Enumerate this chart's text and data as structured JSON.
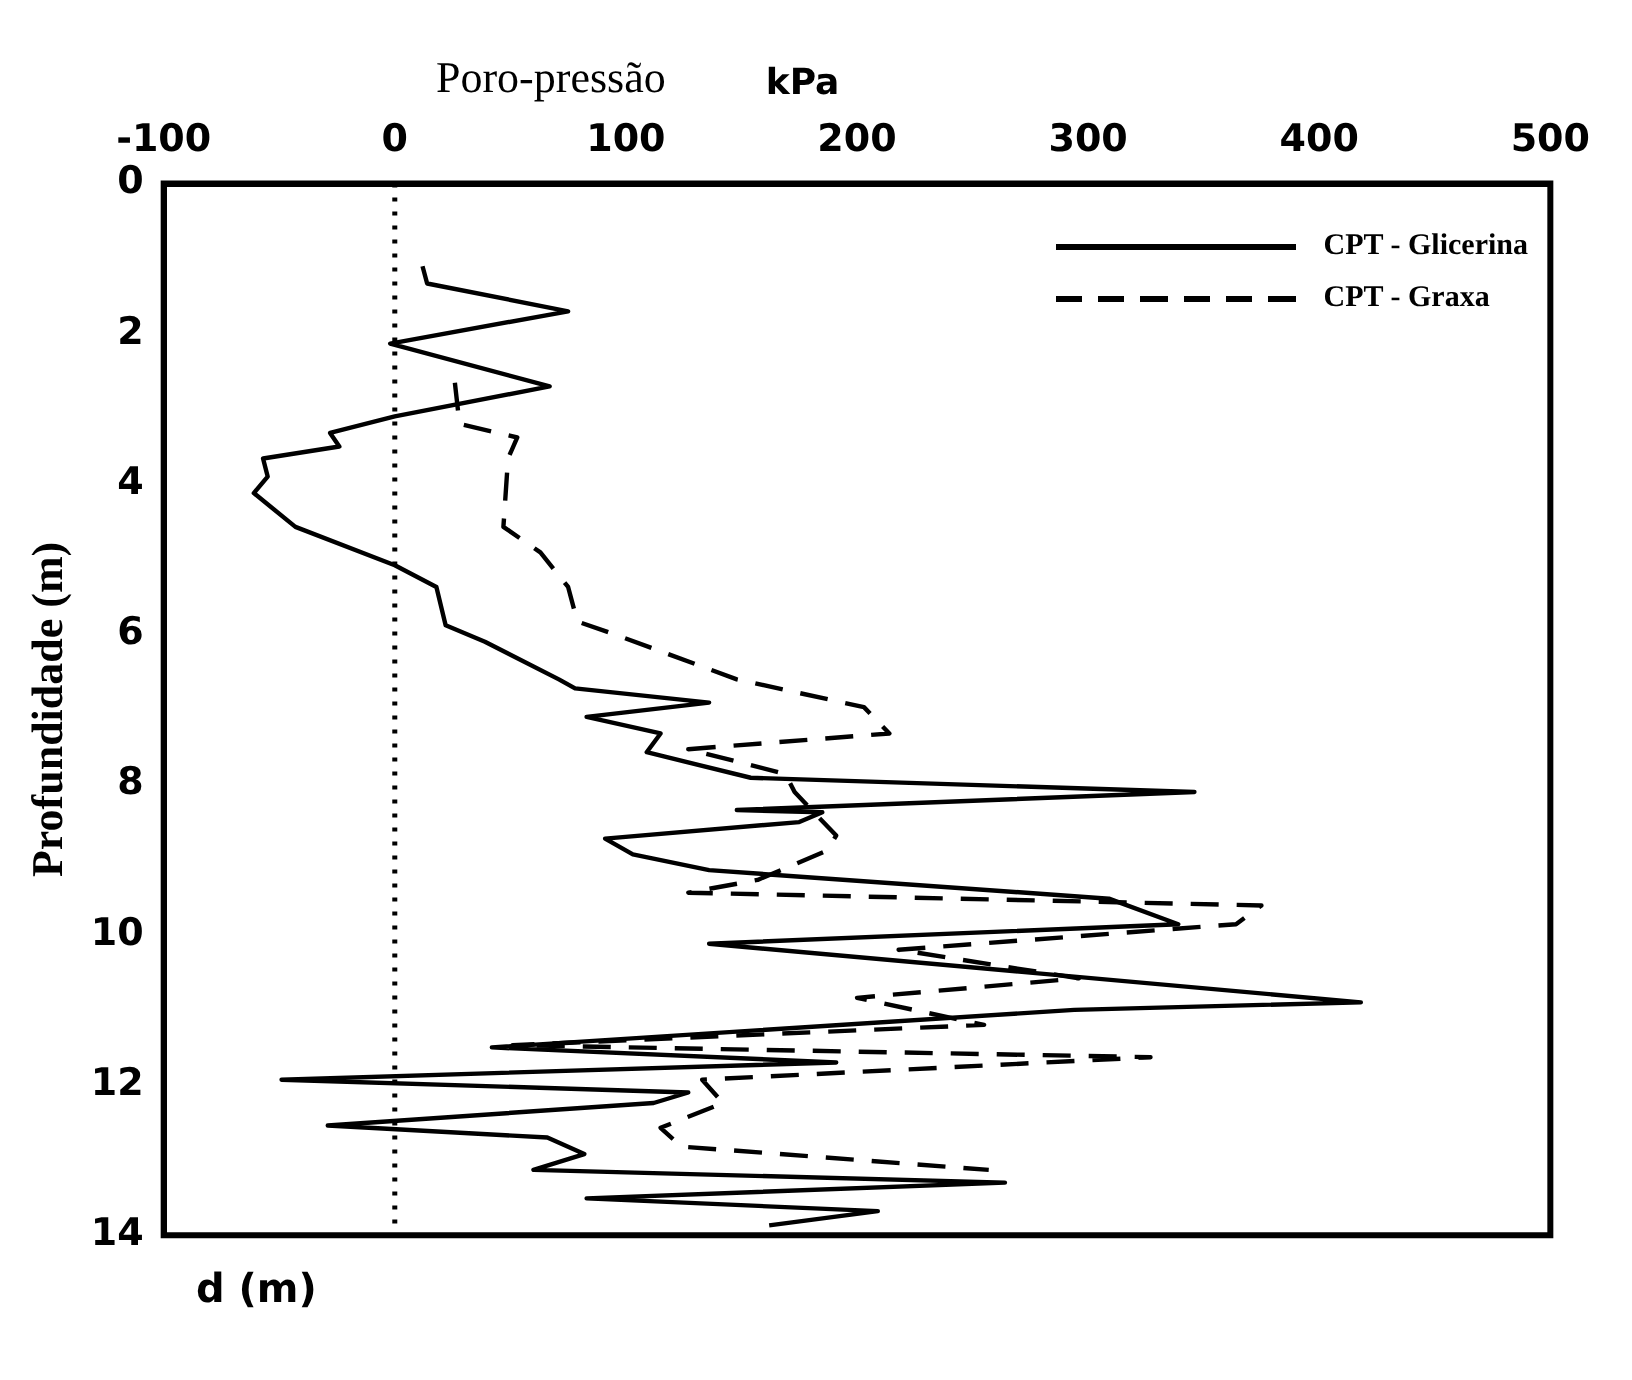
{
  "chart_data": {
    "type": "line",
    "title": "Poro-pressão",
    "xlabel": "kPa",
    "ylabel": "Profundidade (m)",
    "annotations": [
      "d (m)"
    ],
    "xlim": [
      -100,
      500
    ],
    "xticks": [
      -100,
      0,
      100,
      200,
      300,
      400,
      500
    ],
    "ylim": [
      14,
      0
    ],
    "yticks": [
      0,
      2,
      4,
      6,
      8,
      10,
      12,
      14
    ],
    "grid": false,
    "legend": "top right",
    "marker": "none",
    "ref_lines": [
      {
        "axis": "x",
        "value": 0,
        "line_style": "dotted",
        "color": "#000000"
      }
    ],
    "series": [
      {
        "name": "CPT - Glicerina",
        "color": "#000000",
        "line_style": "solid",
        "x": [
          12,
          14,
          75,
          -2,
          67,
          0,
          -28,
          -24,
          -57,
          -55,
          -61,
          -43,
          0,
          18,
          22,
          39,
          71,
          78,
          136,
          83,
          115,
          109,
          154,
          346,
          148,
          185,
          175,
          91,
          103,
          136,
          309,
          339,
          136,
          418,
          294,
          42,
          191,
          -49,
          127,
          112,
          -29,
          66,
          82,
          60,
          264,
          83,
          209,
          162
        ],
        "values": [
          1.1,
          1.33,
          1.7,
          2.13,
          2.7,
          3.1,
          3.32,
          3.5,
          3.66,
          3.9,
          4.12,
          4.57,
          5.08,
          5.37,
          5.88,
          6.1,
          6.6,
          6.72,
          6.91,
          7.1,
          7.32,
          7.57,
          7.91,
          8.1,
          8.34,
          8.37,
          8.5,
          8.72,
          8.93,
          9.14,
          9.52,
          9.86,
          10.12,
          10.9,
          11.0,
          11.5,
          11.7,
          11.93,
          12.1,
          12.24,
          12.54,
          12.7,
          12.92,
          13.13,
          13.3,
          13.51,
          13.68,
          13.87
        ]
      },
      {
        "name": "CPT - Graxa",
        "color": "#000000",
        "line_style": "dashed",
        "x": [
          26,
          28,
          53,
          49,
          47,
          63,
          75,
          79,
          95,
          148,
          203,
          214,
          127,
          169,
          173,
          191,
          187,
          157,
          127,
          375,
          364,
          218,
          296,
          200,
          255,
          51,
          327,
          133,
          142,
          115,
          124,
          257
        ],
        "values": [
          2.65,
          3.2,
          3.38,
          3.66,
          4.57,
          4.91,
          5.37,
          5.83,
          6.0,
          6.6,
          6.97,
          7.32,
          7.53,
          7.86,
          8.1,
          8.68,
          8.88,
          9.27,
          9.44,
          9.61,
          9.86,
          10.2,
          10.58,
          10.84,
          11.2,
          11.47,
          11.63,
          11.93,
          12.24,
          12.57,
          12.82,
          13.13
        ]
      }
    ]
  }
}
